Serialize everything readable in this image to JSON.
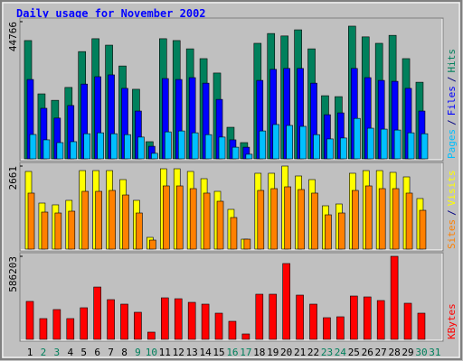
{
  "title": "Daily usage for November 2002",
  "chart_data": [
    {
      "type": "bar",
      "ylim": [
        0,
        44766
      ],
      "yticks": [
        44766
      ],
      "legend_separator": "/",
      "series": [
        {
          "name": "Pages",
          "color": "#00c0ff",
          "values": [
            7950,
            6200,
            5300,
            5600,
            8200,
            8500,
            8200,
            7900,
            7100,
            1800,
            8800,
            9100,
            8500,
            7900,
            7100,
            3800,
            1500,
            9100,
            11200,
            10900,
            10600,
            7900,
            6500,
            6800,
            13200,
            10000,
            9700,
            9400,
            8500,
            8200,
            0
          ]
        },
        {
          "name": "Files",
          "color": "#0000ff",
          "values": [
            25900,
            16500,
            13300,
            17400,
            24400,
            26800,
            27400,
            23000,
            15600,
            4100,
            26200,
            25900,
            26500,
            24700,
            19400,
            6200,
            3800,
            25600,
            29200,
            29500,
            29500,
            24700,
            14400,
            15000,
            29500,
            26500,
            25600,
            25300,
            23000,
            15600,
            0
          ]
        },
        {
          "name": "Hits",
          "color": "#00805c",
          "values": [
            38600,
            21200,
            19100,
            23300,
            35000,
            39200,
            37100,
            30300,
            22700,
            5600,
            39200,
            38600,
            35900,
            32700,
            28000,
            10300,
            5300,
            37700,
            40900,
            40100,
            42100,
            35900,
            20600,
            20300,
            43300,
            39800,
            37700,
            40300,
            32700,
            25000,
            0
          ]
        }
      ]
    },
    {
      "type": "bar",
      "ylim": [
        0,
        2661
      ],
      "yticks": [
        2661
      ],
      "legend_separator": "/",
      "series": [
        {
          "name": "Sites",
          "color": "#ff8000",
          "values": [
            1794,
            1186,
            1157,
            1215,
            1851,
            1851,
            1880,
            1735,
            1157,
            289,
            2025,
            2025,
            1938,
            1794,
            1533,
            1012,
            318,
            1880,
            1938,
            1996,
            1909,
            1794,
            1099,
            1157,
            1880,
            2025,
            1938,
            1938,
            1794,
            1243,
            0
          ]
        },
        {
          "name": "Visits",
          "color": "#ffff00",
          "values": [
            2488,
            1475,
            1418,
            1562,
            2516,
            2516,
            2516,
            2227,
            1562,
            376,
            2574,
            2574,
            2488,
            2256,
            1851,
            1273,
            318,
            2430,
            2430,
            2661,
            2343,
            2227,
            1388,
            1446,
            2430,
            2516,
            2516,
            2459,
            2314,
            1620,
            0
          ]
        }
      ]
    },
    {
      "type": "bar",
      "ylim": [
        0,
        586203
      ],
      "yticks": [
        586203
      ],
      "series": [
        {
          "name": "KBytes",
          "color": "#ff0000",
          "values": [
            267800,
            146500,
            210300,
            146500,
            223000,
            369300,
            280400,
            248500,
            191200,
            51000,
            293100,
            286700,
            261200,
            248500,
            184800,
            127400,
            38200,
            318600,
            318600,
            535200,
            312200,
            248500,
            152900,
            159300,
            305800,
            299500,
            274000,
            586203,
            254900,
            184800,
            0
          ]
        }
      ],
      "categories": [
        "1",
        "2",
        "3",
        "4",
        "5",
        "6",
        "7",
        "8",
        "9",
        "10",
        "11",
        "12",
        "13",
        "14",
        "15",
        "16",
        "17",
        "18",
        "19",
        "20",
        "21",
        "22",
        "23",
        "24",
        "25",
        "26",
        "27",
        "28",
        "29",
        "30",
        "31"
      ],
      "category_colors": [
        "#000000",
        "#00805c",
        "#00805c",
        "#000000",
        "#000000",
        "#000000",
        "#000000",
        "#000000",
        "#00805c",
        "#00805c",
        "#000000",
        "#000000",
        "#000000",
        "#000000",
        "#000000",
        "#00805c",
        "#00805c",
        "#000000",
        "#000000",
        "#000000",
        "#000000",
        "#000000",
        "#00805c",
        "#00805c",
        "#000000",
        "#000000",
        "#000000",
        "#000000",
        "#000000",
        "#00805c",
        "#00805c"
      ]
    }
  ]
}
